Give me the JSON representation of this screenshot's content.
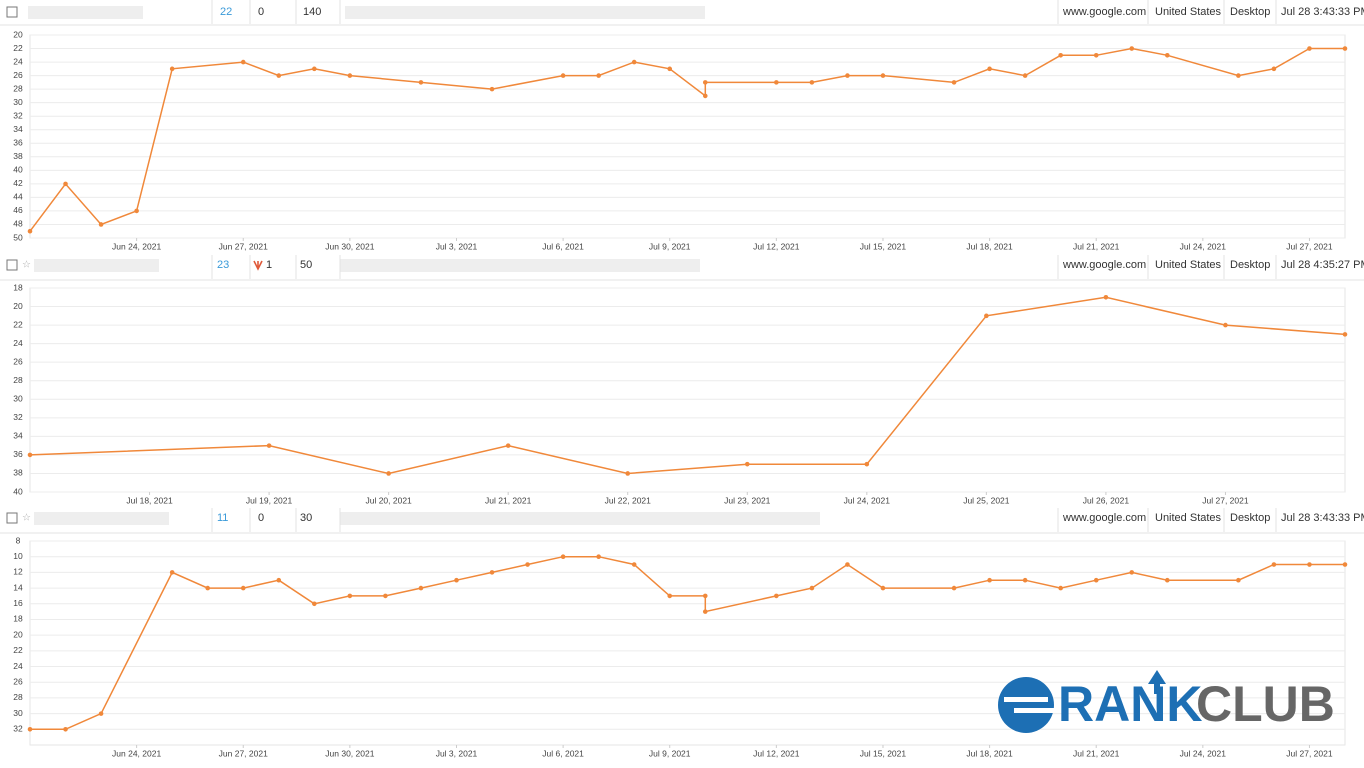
{
  "rows": [
    {
      "rank": "22",
      "change": "0",
      "volume": "140",
      "engine": "www.google.com",
      "country": "United States",
      "device": "Desktop",
      "updated": "Jul 28 3:43:33 PM"
    },
    {
      "rank": "23",
      "change": "1",
      "volume": "50",
      "engine": "www.google.com",
      "country": "United States",
      "device": "Desktop",
      "updated": "Jul 28 4:35:27 PM"
    },
    {
      "rank": "11",
      "change": "0",
      "volume": "30",
      "engine": "www.google.com",
      "country": "United States",
      "device": "Desktop",
      "updated": "Jul 28 3:43:33 PM"
    }
  ],
  "logo": {
    "word1": "RANK",
    "word2": "CLUB"
  },
  "chart_data": [
    {
      "type": "line",
      "color": "#f0883a",
      "y_reversed": true,
      "grid": true,
      "x": [
        "2021-06-21",
        "2021-06-22",
        "2021-06-23",
        "2021-06-24",
        "2021-06-25",
        "2021-06-27",
        "2021-06-28",
        "2021-06-29",
        "2021-06-30",
        "2021-07-02",
        "2021-07-04",
        "2021-07-06",
        "2021-07-07",
        "2021-07-08",
        "2021-07-09",
        "2021-07-10",
        "2021-07-10",
        "2021-07-12",
        "2021-07-13",
        "2021-07-14",
        "2021-07-15",
        "2021-07-17",
        "2021-07-18",
        "2021-07-19",
        "2021-07-20",
        "2021-07-21",
        "2021-07-22",
        "2021-07-23",
        "2021-07-25",
        "2021-07-26",
        "2021-07-27",
        "2021-07-28"
      ],
      "series": [
        {
          "color": "#f0883a",
          "values": [
            49,
            42,
            48,
            46,
            25,
            24,
            26,
            25,
            26,
            27,
            28,
            26,
            26,
            24,
            25,
            29,
            27,
            27,
            27,
            26,
            26,
            27,
            25,
            26,
            23,
            23,
            22,
            23,
            26,
            25,
            22,
            22
          ]
        }
      ],
      "xlim": [
        "2021-06-21",
        "2021-07-28"
      ],
      "xticks": [
        {
          "value": "2021-06-24",
          "label": "Jun 24, 2021"
        },
        {
          "value": "2021-06-27",
          "label": "Jun 27, 2021"
        },
        {
          "value": "2021-06-30",
          "label": "Jun 30, 2021"
        },
        {
          "value": "2021-07-03",
          "label": "Jul 3, 2021"
        },
        {
          "value": "2021-07-06",
          "label": "Jul 6, 2021"
        },
        {
          "value": "2021-07-09",
          "label": "Jul 9, 2021"
        },
        {
          "value": "2021-07-12",
          "label": "Jul 12, 2021"
        },
        {
          "value": "2021-07-15",
          "label": "Jul 15, 2021"
        },
        {
          "value": "2021-07-18",
          "label": "Jul 18, 2021"
        },
        {
          "value": "2021-07-21",
          "label": "Jul 21, 2021"
        },
        {
          "value": "2021-07-24",
          "label": "Jul 24, 2021"
        },
        {
          "value": "2021-07-27",
          "label": "Jul 27, 2021"
        }
      ],
      "ylim": [
        20,
        50
      ],
      "yticks": [
        20,
        22,
        24,
        26,
        28,
        30,
        32,
        34,
        36,
        38,
        40,
        42,
        44,
        46,
        48,
        50
      ]
    },
    {
      "type": "line",
      "color": "#f0883a",
      "y_reversed": true,
      "grid": true,
      "x": [
        "2021-07-17",
        "2021-07-19",
        "2021-07-20",
        "2021-07-21",
        "2021-07-22",
        "2021-07-23",
        "2021-07-24",
        "2021-07-25",
        "2021-07-26",
        "2021-07-27",
        "2021-07-28"
      ],
      "series": [
        {
          "color": "#f0883a",
          "values": [
            36,
            35,
            38,
            35,
            38,
            37,
            37,
            21,
            19,
            22,
            23
          ]
        }
      ],
      "xlim": [
        "2021-07-17",
        "2021-07-28"
      ],
      "xticks": [
        {
          "value": "2021-07-18",
          "label": "Jul 18, 2021"
        },
        {
          "value": "2021-07-19",
          "label": "Jul 19, 2021"
        },
        {
          "value": "2021-07-20",
          "label": "Jul 20, 2021"
        },
        {
          "value": "2021-07-21",
          "label": "Jul 21, 2021"
        },
        {
          "value": "2021-07-22",
          "label": "Jul 22, 2021"
        },
        {
          "value": "2021-07-23",
          "label": "Jul 23, 2021"
        },
        {
          "value": "2021-07-24",
          "label": "Jul 24, 2021"
        },
        {
          "value": "2021-07-25",
          "label": "Jul 25, 2021"
        },
        {
          "value": "2021-07-26",
          "label": "Jul 26, 2021"
        },
        {
          "value": "2021-07-27",
          "label": "Jul 27, 2021"
        }
      ],
      "ylim": [
        18,
        40
      ],
      "yticks": [
        18,
        20,
        22,
        24,
        26,
        28,
        30,
        32,
        34,
        36,
        38,
        40
      ]
    },
    {
      "type": "line",
      "color": "#f0883a",
      "y_reversed": true,
      "grid": true,
      "x": [
        "2021-06-21",
        "2021-06-22",
        "2021-06-23",
        "2021-06-25",
        "2021-06-26",
        "2021-06-27",
        "2021-06-28",
        "2021-06-29",
        "2021-06-30",
        "2021-07-01",
        "2021-07-02",
        "2021-07-03",
        "2021-07-04",
        "2021-07-05",
        "2021-07-06",
        "2021-07-07",
        "2021-07-08",
        "2021-07-09",
        "2021-07-10",
        "2021-07-10",
        "2021-07-12",
        "2021-07-13",
        "2021-07-14",
        "2021-07-15",
        "2021-07-17",
        "2021-07-18",
        "2021-07-19",
        "2021-07-20",
        "2021-07-21",
        "2021-07-22",
        "2021-07-23",
        "2021-07-25",
        "2021-07-26",
        "2021-07-27",
        "2021-07-28"
      ],
      "series": [
        {
          "color": "#f0883a",
          "values": [
            32,
            32,
            30,
            12,
            14,
            14,
            13,
            16,
            15,
            15,
            14,
            13,
            12,
            11,
            10,
            10,
            11,
            15,
            15,
            17,
            15,
            14,
            11,
            14,
            14,
            13,
            13,
            14,
            13,
            12,
            13,
            13,
            11,
            11,
            11
          ]
        }
      ],
      "xlim": [
        "2021-06-21",
        "2021-07-28"
      ],
      "xticks": [
        {
          "value": "2021-06-24",
          "label": "Jun 24, 2021"
        },
        {
          "value": "2021-06-27",
          "label": "Jun 27, 2021"
        },
        {
          "value": "2021-06-30",
          "label": "Jun 30, 2021"
        },
        {
          "value": "2021-07-03",
          "label": "Jul 3, 2021"
        },
        {
          "value": "2021-07-06",
          "label": "Jul 6, 2021"
        },
        {
          "value": "2021-07-09",
          "label": "Jul 9, 2021"
        },
        {
          "value": "2021-07-12",
          "label": "Jul 12, 2021"
        },
        {
          "value": "2021-07-15",
          "label": "Jul 15, 2021"
        },
        {
          "value": "2021-07-18",
          "label": "Jul 18, 2021"
        },
        {
          "value": "2021-07-21",
          "label": "Jul 21, 2021"
        },
        {
          "value": "2021-07-24",
          "label": "Jul 24, 2021"
        },
        {
          "value": "2021-07-27",
          "label": "Jul 27, 2021"
        }
      ],
      "ylim": [
        8,
        34
      ],
      "yticks": [
        8,
        10,
        12,
        14,
        16,
        18,
        20,
        22,
        24,
        26,
        28,
        30,
        32
      ]
    }
  ]
}
